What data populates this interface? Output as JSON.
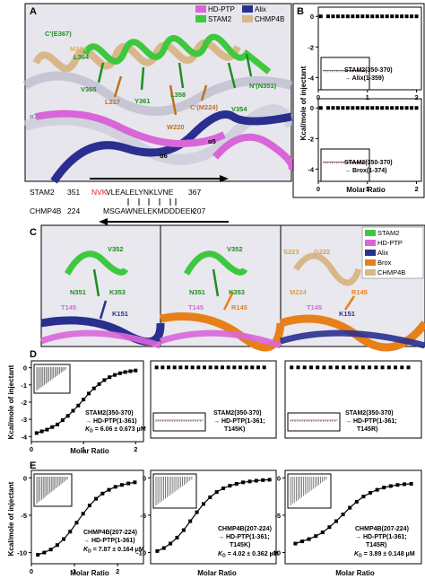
{
  "panels": {
    "A": {
      "letter": "A",
      "legend": [
        {
          "label": "HD-PTP",
          "color": "#d966d9"
        },
        {
          "label": "Alix",
          "color": "#2a2f8f"
        },
        {
          "label": "STAM2",
          "color": "#3ec83e"
        },
        {
          "label": "CHMP4B",
          "color": "#d8b88a"
        }
      ],
      "residue_labels": [
        {
          "text": "C'(E367)",
          "color": "#1f8f1f"
        },
        {
          "text": "M214",
          "color": "#d8b070"
        },
        {
          "text": "L364",
          "color": "#1f8f1f"
        },
        {
          "text": "V365",
          "color": "#1f8f1f"
        },
        {
          "text": "L217",
          "color": "#c07020"
        },
        {
          "text": "Y361",
          "color": "#1f8f1f"
        },
        {
          "text": "L358",
          "color": "#1f8f1f"
        },
        {
          "text": "C'(M224)",
          "color": "#c07020"
        },
        {
          "text": "N'(N351)",
          "color": "#1f8f1f"
        },
        {
          "text": "V354",
          "color": "#1f8f1f"
        },
        {
          "text": "W220",
          "color": "#c07020"
        },
        {
          "text": "α7",
          "color": "#8888aa"
        },
        {
          "text": "α5",
          "color": "#000000"
        },
        {
          "text": "α6",
          "color": "#000000"
        }
      ],
      "seq_stam2": {
        "name": "STAM2",
        "start": "351",
        "red": "NVK",
        "rest": "VLEALELYNKLVNE",
        "end": "367"
      },
      "seq_chmp4b": {
        "name": "CHMP4B",
        "start": "224",
        "seq": "MSGAWNELEKMDDDEEK",
        "end": "207"
      }
    },
    "B": {
      "letter": "B",
      "ylabel": "Kcal/mole of injectant",
      "xlabel": "Molar Ratio",
      "plots": [
        {
          "label_line1": "STAM2(350-370)",
          "label_line2": "→ Alix(1-359)"
        },
        {
          "label_line1": "STAM2(350-370)",
          "label_line2": "→ Brox(1-374)"
        }
      ]
    },
    "C": {
      "letter": "C",
      "legend": [
        {
          "label": "STAM2",
          "color": "#3ec83e"
        },
        {
          "label": "HD-PTP",
          "color": "#d966d9"
        },
        {
          "label": "Alix",
          "color": "#2a2f8f"
        },
        {
          "label": "Brox",
          "color": "#e8801a"
        },
        {
          "label": "CHMP4B",
          "color": "#d8b88a"
        }
      ],
      "sub1": [
        "V352",
        "N351",
        "K353",
        "T145",
        "K151"
      ],
      "sub2": [
        "V352",
        "N351",
        "K353",
        "T145",
        "R145"
      ],
      "sub3": [
        "S223",
        "G222",
        "M224",
        "T145",
        "R145",
        "K151"
      ]
    },
    "D": {
      "letter": "D",
      "ylabel": "Kcal/mole of injectant",
      "xlabel": "Molar Ratio",
      "plots": [
        {
          "lines": [
            "STAM2(350-370)",
            "→ HD-PTP(1-361)"
          ],
          "kd": "= 6.06 ± 0.673 μM"
        },
        {
          "lines": [
            "STAM2(350-370)",
            "→ HD-PTP(1-361;",
            "T145K)"
          ],
          "kd": ""
        },
        {
          "lines": [
            "STAM2(350-370)",
            "→ HD-PTP(1-361;",
            "T145R)"
          ],
          "kd": ""
        }
      ]
    },
    "E": {
      "letter": "E",
      "ylabel": "Kcal/mole of injectant",
      "xlabel": "Molar Ratio",
      "plots": [
        {
          "lines": [
            "CHMP4B(207-224)",
            "→ HD-PTP(1-361)"
          ],
          "kd": "= 7.87 ± 0.164 μM"
        },
        {
          "lines": [
            "CHMP4B(207-224)",
            "→ HD-PTP(1-361;",
            "T145K)"
          ],
          "kd": "= 4.02 ± 0.362 μM"
        },
        {
          "lines": [
            "CHMP4B(207-224)",
            "→ HD-PTP(1-361;",
            "T145R)"
          ],
          "kd": "= 3.89 ± 0.148 μM"
        }
      ]
    }
  },
  "chart_data": [
    {
      "type": "scatter",
      "panel": "B-top",
      "x": [
        0.05,
        0.2,
        0.3,
        0.4,
        0.5,
        0.6,
        0.7,
        0.8,
        0.9,
        1.0,
        1.1,
        1.2,
        1.3,
        1.4,
        1.5,
        1.6,
        1.7,
        1.8,
        1.9,
        2.0
      ],
      "y": [
        0,
        0,
        0,
        0,
        0,
        0,
        0,
        0,
        0,
        0,
        0,
        0,
        0,
        0,
        0,
        0,
        0,
        0,
        0,
        0
      ],
      "xticks": [
        "0",
        "1",
        "2"
      ],
      "yticks": [
        "0",
        "-2",
        "-4"
      ],
      "xlim": [
        0,
        2.1
      ],
      "ylim": [
        -4.8,
        0.6
      ]
    },
    {
      "type": "scatter",
      "panel": "B-bottom",
      "x": [
        0.05,
        0.2,
        0.3,
        0.4,
        0.5,
        0.6,
        0.7,
        0.8,
        0.9,
        1.0,
        1.1,
        1.2,
        1.3,
        1.4,
        1.5,
        1.6,
        1.7,
        1.8,
        1.9,
        2.0
      ],
      "y": [
        0,
        0,
        0,
        0,
        0,
        0,
        0,
        0,
        0,
        0,
        0,
        0,
        0,
        0,
        0,
        0,
        0,
        0,
        0,
        0
      ],
      "xticks": [
        "0",
        "1",
        "2"
      ],
      "yticks": [
        "0",
        "-2",
        "-4"
      ],
      "xlim": [
        0,
        2.1
      ],
      "ylim": [
        -4.8,
        0.6
      ]
    },
    {
      "type": "scatter",
      "panel": "D-1",
      "x": [
        0.1,
        0.2,
        0.3,
        0.4,
        0.5,
        0.6,
        0.7,
        0.8,
        0.9,
        1.0,
        1.1,
        1.2,
        1.3,
        1.4,
        1.5,
        1.6,
        1.7,
        1.8,
        1.9,
        2.0
      ],
      "y": [
        -3.8,
        -3.7,
        -3.6,
        -3.45,
        -3.3,
        -3.05,
        -2.8,
        -2.5,
        -2.2,
        -1.85,
        -1.5,
        -1.2,
        -0.95,
        -0.72,
        -0.55,
        -0.42,
        -0.32,
        -0.25,
        -0.2,
        -0.16
      ],
      "xticks": [
        "0",
        "1",
        "2"
      ],
      "yticks": [
        "0",
        "-1",
        "-2",
        "-3",
        "-4"
      ],
      "xlim": [
        0,
        2.15
      ],
      "ylim": [
        -4.3,
        0.4
      ]
    },
    {
      "type": "scatter",
      "panel": "D-2",
      "x": [
        0.1,
        0.2,
        0.3,
        0.4,
        0.5,
        0.6,
        0.7,
        0.8,
        0.9,
        1.0,
        1.1,
        1.2,
        1.3,
        1.4,
        1.5,
        1.6,
        1.7,
        1.8,
        1.9
      ],
      "y": [
        0,
        0,
        0,
        0,
        0,
        0,
        0,
        0,
        0,
        0,
        0,
        0,
        0,
        0,
        0,
        0,
        0,
        0,
        0
      ],
      "xlim": [
        0,
        2.1
      ],
      "ylim": [
        -4.3,
        0.4
      ]
    },
    {
      "type": "scatter",
      "panel": "D-3",
      "x": [
        0.1,
        0.2,
        0.3,
        0.4,
        0.5,
        0.6,
        0.7,
        0.8,
        0.9,
        1.0,
        1.1,
        1.2,
        1.3,
        1.4,
        1.5,
        1.6,
        1.7,
        1.8,
        1.9
      ],
      "y": [
        0,
        0,
        0,
        0,
        0,
        0,
        0,
        0,
        0,
        0,
        0,
        0,
        0,
        0,
        0,
        0,
        0,
        0,
        0
      ],
      "xlim": [
        0,
        2.1
      ],
      "ylim": [
        -4.3,
        0.4
      ]
    },
    {
      "type": "scatter",
      "panel": "E-1",
      "x": [
        0.15,
        0.3,
        0.45,
        0.6,
        0.75,
        0.9,
        1.05,
        1.2,
        1.35,
        1.5,
        1.65,
        1.8,
        1.95,
        2.1,
        2.25,
        2.4
      ],
      "y": [
        -10.3,
        -10.0,
        -9.6,
        -9.0,
        -8.2,
        -7.2,
        -6.0,
        -4.8,
        -3.7,
        -2.8,
        -2.1,
        -1.6,
        -1.2,
        -0.95,
        -0.75,
        -0.6
      ],
      "xticks": [
        "0",
        "1",
        "2"
      ],
      "yticks": [
        "0",
        "-5",
        "-10"
      ],
      "xlim": [
        0,
        2.6
      ],
      "ylim": [
        -11.5,
        1
      ]
    },
    {
      "type": "scatter",
      "panel": "E-2",
      "x": [
        0.1,
        0.2,
        0.3,
        0.4,
        0.5,
        0.6,
        0.7,
        0.8,
        0.9,
        1.0,
        1.1,
        1.2,
        1.3,
        1.4,
        1.5,
        1.6,
        1.7,
        1.8
      ],
      "y": [
        -9.8,
        -9.4,
        -8.8,
        -8.0,
        -7.0,
        -5.8,
        -4.6,
        -3.5,
        -2.6,
        -1.9,
        -1.4,
        -1.05,
        -0.8,
        -0.6,
        -0.48,
        -0.38,
        -0.3,
        -0.25
      ],
      "yticks": [
        "0",
        "-5",
        "-10"
      ],
      "xlim": [
        0,
        1.9
      ],
      "ylim": [
        -11.5,
        1
      ]
    },
    {
      "type": "scatter",
      "panel": "E-3",
      "x": [
        0.15,
        0.25,
        0.35,
        0.45,
        0.55,
        0.65,
        0.75,
        0.85,
        0.95,
        1.05,
        1.15,
        1.25,
        1.35,
        1.45,
        1.55,
        1.65,
        1.75,
        1.85
      ],
      "y": [
        -8.8,
        -8.5,
        -8.2,
        -7.8,
        -7.3,
        -6.6,
        -5.8,
        -4.9,
        -4.0,
        -3.2,
        -2.5,
        -2.0,
        -1.6,
        -1.3,
        -1.1,
        -0.95,
        -0.85,
        -0.8
      ],
      "yticks": [
        "0",
        "-5",
        "-10"
      ],
      "xlim": [
        0,
        2.0
      ],
      "ylim": [
        -11.5,
        1
      ]
    }
  ]
}
